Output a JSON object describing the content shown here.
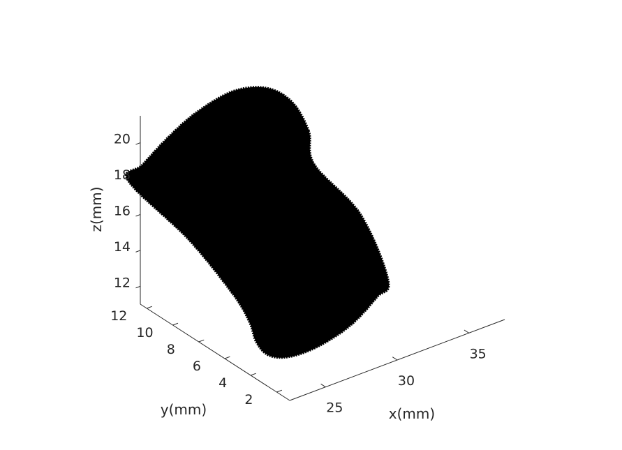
{
  "chart_data": {
    "type": "scatter",
    "dimensions": 3,
    "rendering": "dense filled point cloud (black)",
    "xlabel": "x(mm)",
    "ylabel": "y(mm)",
    "zlabel": "z(mm)",
    "x_ticks": [
      "25",
      "30",
      "35"
    ],
    "y_ticks": [
      "2",
      "4",
      "6",
      "8",
      "10",
      "12"
    ],
    "z_ticks": [
      "12",
      "14",
      "16",
      "18",
      "20"
    ],
    "xlim": [
      22.5,
      37.5
    ],
    "ylim": [
      1,
      12.5
    ],
    "zlim": [
      11,
      21.5
    ],
    "grid": false,
    "marker_color": "#000000",
    "axis_color": "#262626",
    "outline": [
      {
        "x": 33.8,
        "y": 12.0,
        "z": 17.5
      },
      {
        "x": 32.6,
        "y": 12.0,
        "z": 19.5
      },
      {
        "x": 30.8,
        "y": 12.0,
        "z": 20.8
      },
      {
        "x": 28.5,
        "y": 12.0,
        "z": 21.3
      },
      {
        "x": 26.0,
        "y": 12.0,
        "z": 20.9
      },
      {
        "x": 24.0,
        "y": 12.0,
        "z": 20.1
      },
      {
        "x": 22.2,
        "y": 12.0,
        "z": 19.1
      },
      {
        "x": 21.2,
        "y": 12.0,
        "z": 18.5
      },
      {
        "x": 21.8,
        "y": 8.0,
        "z": 16.9
      },
      {
        "x": 22.2,
        "y": 5.0,
        "z": 15.1
      },
      {
        "x": 22.4,
        "y": 4.0,
        "z": 14.0
      },
      {
        "x": 22.9,
        "y": 4.0,
        "z": 12.7
      },
      {
        "x": 23.8,
        "y": 4.0,
        "z": 11.7
      },
      {
        "x": 25.3,
        "y": 4.0,
        "z": 11.2
      },
      {
        "x": 27.3,
        "y": 4.0,
        "z": 11.2
      },
      {
        "x": 29.5,
        "y": 4.0,
        "z": 11.7
      },
      {
        "x": 31.3,
        "y": 4.0,
        "z": 12.7
      },
      {
        "x": 32.1,
        "y": 4.0,
        "z": 13.4
      },
      {
        "x": 33.8,
        "y": 8.0,
        "z": 14.7
      },
      {
        "x": 34.2,
        "y": 12.0,
        "z": 15.5
      }
    ]
  }
}
